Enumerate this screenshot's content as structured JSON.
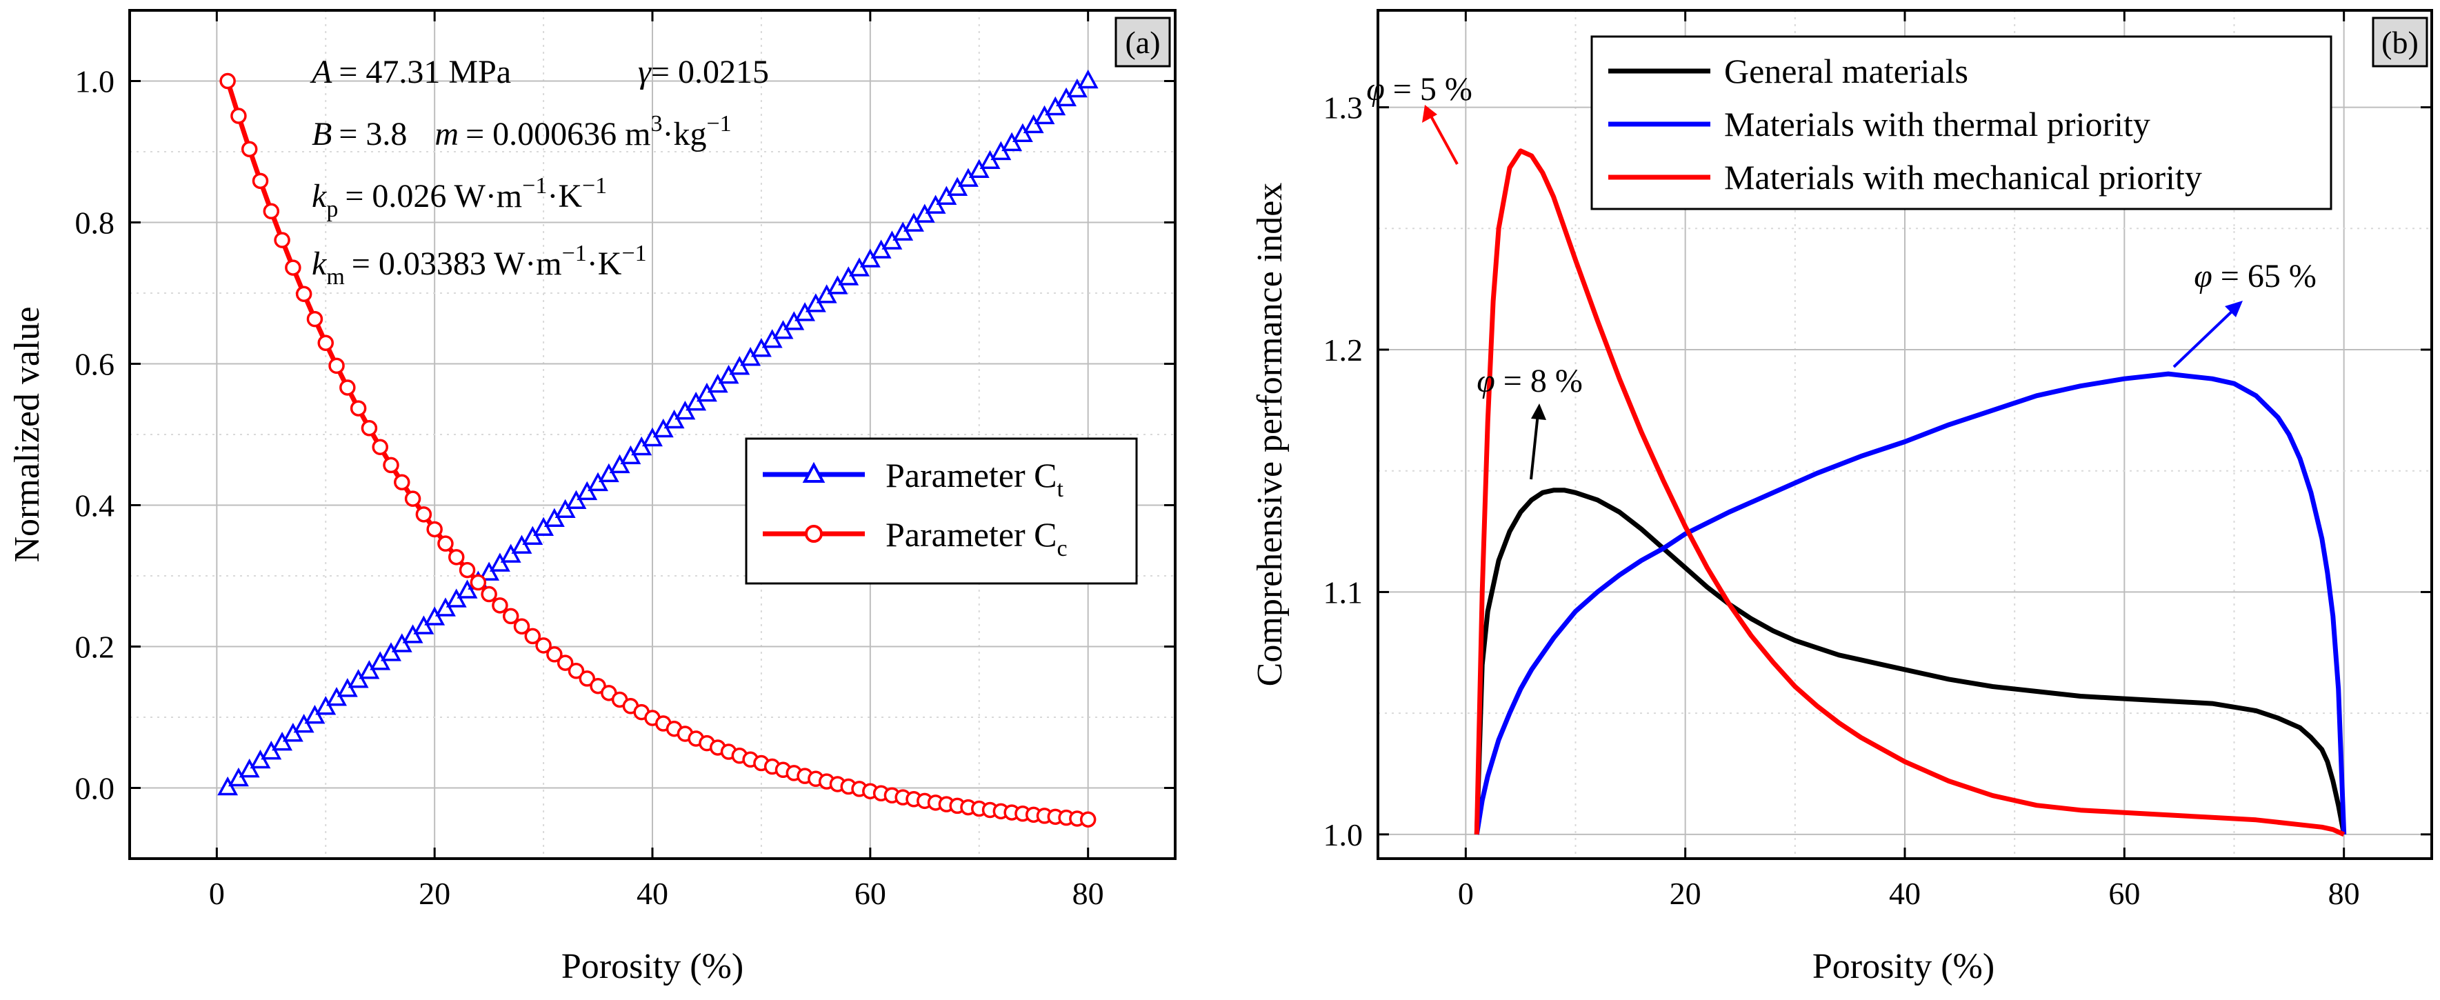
{
  "chart_data": [
    {
      "panel": "(a)",
      "type": "line",
      "xlabel": "Porosity (%)",
      "ylabel": "Normalized value",
      "xlim": [
        -8,
        88
      ],
      "ylim": [
        -0.1,
        1.1
      ],
      "xticks": [
        0,
        20,
        40,
        60,
        80
      ],
      "yticks": [
        0.0,
        0.2,
        0.4,
        0.6,
        0.8,
        1.0
      ],
      "grid": true,
      "legend_position": "center-right",
      "params": {
        "A": {
          "name": "A",
          "value": "= 47.31 MPa"
        },
        "gamma": {
          "name": "γ",
          "value": "= 0.0215"
        },
        "B": {
          "name": "B",
          "value": "= 3.8"
        },
        "m": {
          "name": "m",
          "value": "= 0.000636 m",
          "sup": "3",
          "rest": "·kg",
          "sup2": "−1"
        },
        "kp": {
          "name": "k",
          "sub": "p",
          "value": "= 0.026 W·m",
          "sup": "−1",
          "rest": "·K",
          "sup2": "−1"
        },
        "km": {
          "name": "k",
          "sub": "m",
          "value": "= 0.03383 W·m",
          "sup": "−1",
          "rest": "·K",
          "sup2": "−1"
        }
      },
      "series": [
        {
          "name": "Parameter C",
          "name_sub": "t",
          "color": "#0000ff",
          "marker": "triangle",
          "x": [
            1,
            2,
            3,
            4,
            5,
            6,
            7,
            8,
            9,
            10,
            11,
            12,
            13,
            14,
            15,
            16,
            17,
            18,
            19,
            20,
            21,
            22,
            23,
            24,
            25,
            26,
            27,
            28,
            29,
            30,
            31,
            32,
            33,
            34,
            35,
            36,
            37,
            38,
            39,
            40,
            41,
            42,
            43,
            44,
            45,
            46,
            47,
            48,
            49,
            50,
            51,
            52,
            53,
            54,
            55,
            56,
            57,
            58,
            59,
            60,
            61,
            62,
            63,
            64,
            65,
            66,
            67,
            68,
            69,
            70,
            71,
            72,
            73,
            74,
            75,
            76,
            77,
            78,
            79,
            80
          ],
          "y": [
            0.0,
            0.0127,
            0.0253,
            0.038,
            0.0506,
            0.0633,
            0.0759,
            0.0886,
            0.1013,
            0.1139,
            0.1266,
            0.1392,
            0.1519,
            0.1646,
            0.1772,
            0.1899,
            0.2025,
            0.2152,
            0.2278,
            0.2405,
            0.2532,
            0.2658,
            0.2785,
            0.2911,
            0.3038,
            0.3165,
            0.3291,
            0.3418,
            0.3544,
            0.3671,
            0.3797,
            0.3924,
            0.4051,
            0.4177,
            0.4304,
            0.443,
            0.4557,
            0.4684,
            0.481,
            0.4937,
            0.5063,
            0.519,
            0.5316,
            0.5443,
            0.557,
            0.5696,
            0.5823,
            0.5949,
            0.6076,
            0.6203,
            0.6329,
            0.6456,
            0.6582,
            0.6709,
            0.6835,
            0.6962,
            0.7089,
            0.7215,
            0.7342,
            0.7468,
            0.7595,
            0.7722,
            0.7848,
            0.7975,
            0.8101,
            0.8228,
            0.8354,
            0.8481,
            0.8608,
            0.8734,
            0.8861,
            0.8987,
            0.9114,
            0.9241,
            0.9367,
            0.9494,
            0.962,
            0.9747,
            0.9873,
            1.0
          ]
        },
        {
          "name": "Parameter C",
          "name_sub": "c",
          "color": "#ff0000",
          "marker": "circle",
          "x": [
            1,
            2,
            3,
            4,
            5,
            6,
            7,
            8,
            9,
            10,
            11,
            12,
            13,
            14,
            15,
            16,
            17,
            18,
            19,
            20,
            21,
            22,
            23,
            24,
            25,
            26,
            27,
            28,
            29,
            30,
            31,
            32,
            33,
            34,
            35,
            36,
            37,
            38,
            39,
            40,
            41,
            42,
            43,
            44,
            45,
            46,
            47,
            48,
            49,
            50,
            51,
            52,
            53,
            54,
            55,
            56,
            57,
            58,
            59,
            60,
            61,
            62,
            63,
            64,
            65,
            66,
            67,
            68,
            69,
            70,
            71,
            72,
            73,
            74,
            75,
            76,
            77,
            78,
            79,
            80
          ],
          "y": [
            1.0,
            0.9507,
            0.9036,
            0.8587,
            0.8158,
            0.775,
            0.736,
            0.6988,
            0.6633,
            0.6295,
            0.5972,
            0.5664,
            0.537,
            0.509,
            0.4822,
            0.4567,
            0.4324,
            0.4091,
            0.387,
            0.3659,
            0.3457,
            0.3265,
            0.3082,
            0.2907,
            0.2741,
            0.2582,
            0.243,
            0.2285,
            0.2147,
            0.2016,
            0.189,
            0.177,
            0.1656,
            0.1547,
            0.1442,
            0.1343,
            0.1249,
            0.1158,
            0.1072,
            0.099,
            0.0912,
            0.0837,
            0.0766,
            0.0698,
            0.0633,
            0.0571,
            0.0512,
            0.0456,
            0.0402,
            0.0351,
            0.0302,
            0.0256,
            0.0211,
            0.0169,
            0.0129,
            0.0091,
            0.0054,
            0.0019,
            -0.0014,
            -0.0046,
            -0.0076,
            -0.0105,
            -0.0133,
            -0.0159,
            -0.0184,
            -0.0208,
            -0.0231,
            -0.0253,
            -0.0274,
            -0.0293,
            -0.0312,
            -0.033,
            -0.0347,
            -0.0364,
            -0.0379,
            -0.0394,
            -0.0408,
            -0.0421,
            -0.0434,
            -0.0446
          ]
        }
      ]
    },
    {
      "panel": "(b)",
      "type": "line",
      "xlabel": "Porosity (%)",
      "ylabel": "Comprehensive performance index",
      "xlim": [
        -8,
        88
      ],
      "ylim": [
        0.99,
        1.34
      ],
      "xticks": [
        0,
        20,
        40,
        60,
        80
      ],
      "yticks": [
        1.0,
        1.1,
        1.2,
        1.3
      ],
      "grid": true,
      "legend_position": "top-right",
      "annotations": [
        {
          "var": "φ",
          "text": " = 5 %",
          "color": "#ff0000"
        },
        {
          "var": "φ",
          "text": " = 8 %",
          "color": "#000000"
        },
        {
          "var": "φ",
          "text": " = 65 %",
          "color": "#0000ff"
        }
      ],
      "series": [
        {
          "name": "General materials",
          "color": "#000000",
          "x": [
            1,
            1.5,
            2,
            3,
            4,
            5,
            6,
            7,
            8,
            9,
            10,
            12,
            14,
            16,
            18,
            20,
            22,
            24,
            26,
            28,
            30,
            32,
            34,
            36,
            38,
            40,
            44,
            48,
            52,
            56,
            60,
            64,
            68,
            72,
            74,
            76,
            77,
            78,
            78.5,
            79,
            79.5,
            80
          ],
          "y": [
            1.0,
            1.07,
            1.092,
            1.113,
            1.125,
            1.133,
            1.138,
            1.141,
            1.142,
            1.142,
            1.141,
            1.138,
            1.133,
            1.126,
            1.118,
            1.11,
            1.102,
            1.095,
            1.089,
            1.084,
            1.08,
            1.077,
            1.074,
            1.072,
            1.07,
            1.068,
            1.064,
            1.061,
            1.059,
            1.057,
            1.056,
            1.055,
            1.054,
            1.051,
            1.048,
            1.044,
            1.04,
            1.035,
            1.03,
            1.022,
            1.012,
            1.0
          ]
        },
        {
          "name": "Materials with thermal priority",
          "color": "#0000ff",
          "x": [
            1,
            1.5,
            2,
            3,
            4,
            5,
            6,
            8,
            10,
            12,
            14,
            16,
            18,
            20,
            24,
            28,
            32,
            36,
            40,
            44,
            48,
            52,
            56,
            60,
            62,
            64,
            66,
            68,
            70,
            72,
            74,
            75,
            76,
            77,
            78,
            78.5,
            79,
            79.5,
            80
          ],
          "y": [
            1.0,
            1.014,
            1.024,
            1.039,
            1.05,
            1.06,
            1.068,
            1.081,
            1.092,
            1.1,
            1.107,
            1.113,
            1.118,
            1.124,
            1.133,
            1.141,
            1.149,
            1.156,
            1.162,
            1.169,
            1.175,
            1.181,
            1.185,
            1.188,
            1.189,
            1.19,
            1.189,
            1.188,
            1.186,
            1.181,
            1.172,
            1.165,
            1.155,
            1.141,
            1.122,
            1.108,
            1.09,
            1.06,
            1.0
          ]
        },
        {
          "name": "Materials with mechanical priority",
          "color": "#ff0000",
          "x": [
            1,
            1.5,
            2,
            2.5,
            3,
            4,
            5,
            6,
            7,
            8,
            10,
            12,
            14,
            16,
            18,
            20,
            22,
            24,
            26,
            28,
            30,
            32,
            34,
            36,
            40,
            44,
            48,
            52,
            56,
            60,
            64,
            68,
            72,
            76,
            78,
            79,
            80
          ],
          "y": [
            1.0,
            1.1,
            1.17,
            1.22,
            1.25,
            1.275,
            1.282,
            1.28,
            1.273,
            1.263,
            1.237,
            1.212,
            1.188,
            1.166,
            1.146,
            1.127,
            1.11,
            1.095,
            1.082,
            1.071,
            1.061,
            1.053,
            1.046,
            1.04,
            1.03,
            1.022,
            1.016,
            1.012,
            1.01,
            1.009,
            1.008,
            1.007,
            1.006,
            1.004,
            1.003,
            1.002,
            1.0
          ]
        }
      ]
    }
  ]
}
